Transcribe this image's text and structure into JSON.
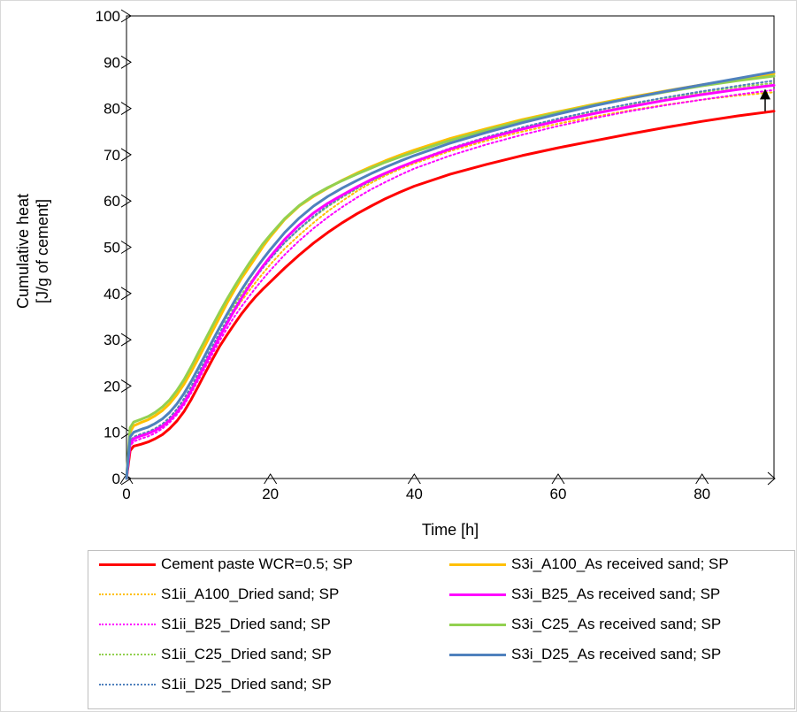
{
  "chart_data": {
    "type": "line",
    "title": "",
    "xlabel": "Time [h]",
    "ylabel": [
      "Cumulative heat",
      "[J/g of cement]"
    ],
    "xlim": [
      0,
      90
    ],
    "ylim": [
      0,
      100
    ],
    "xticks": [
      0,
      20,
      40,
      60,
      80
    ],
    "yticks": [
      0,
      10,
      20,
      30,
      40,
      50,
      60,
      70,
      80,
      90,
      100
    ],
    "grid": false,
    "legend_position": "bottom",
    "x": [
      0,
      0.5,
      1,
      2,
      3,
      4,
      5,
      6,
      7,
      8,
      9,
      10,
      11,
      12,
      13,
      14,
      15,
      16,
      17,
      18,
      19,
      20,
      22,
      24,
      26,
      28,
      30,
      32,
      34,
      36,
      38,
      40,
      45,
      50,
      55,
      60,
      65,
      70,
      75,
      80,
      85,
      90
    ],
    "series": [
      {
        "name": "Cement paste WCR=0.5; SP",
        "color": "#ff0000",
        "style": "solid",
        "values": [
          0,
          6,
          7,
          7.4,
          7.9,
          8.6,
          9.5,
          10.8,
          12.4,
          14.5,
          17.1,
          20.0,
          23.0,
          25.9,
          28.7,
          31.1,
          33.4,
          35.6,
          37.6,
          39.4,
          41.0,
          42.5,
          45.5,
          48.3,
          50.9,
          53.2,
          55.3,
          57.2,
          58.9,
          60.5,
          61.9,
          63.2,
          65.8,
          67.9,
          69.8,
          71.5,
          73.0,
          74.5,
          75.9,
          77.2,
          78.4,
          79.4
        ]
      },
      {
        "name": "S3i_A100_As received sand; SP",
        "color": "#ffc000",
        "style": "solid",
        "values": [
          0,
          10,
          11.4,
          12.1,
          12.7,
          13.6,
          14.7,
          16.2,
          18.1,
          20.4,
          23.1,
          26.0,
          29.0,
          32.0,
          35.0,
          38.0,
          40.7,
          43.3,
          45.6,
          47.9,
          50.2,
          52.3,
          56.0,
          58.9,
          61.0,
          62.8,
          64.5,
          66.0,
          67.4,
          68.7,
          69.9,
          71.0,
          73.5,
          75.6,
          77.6,
          79.3,
          80.9,
          82.4,
          83.8,
          85.1,
          86.2,
          87.5
        ]
      },
      {
        "name": "S1ii_A100_Dried sand; SP",
        "color": "#ffc000",
        "style": "dotted",
        "values": [
          0,
          8,
          9.0,
          9.6,
          10.1,
          10.8,
          11.8,
          13.2,
          15.0,
          17.2,
          19.8,
          22.6,
          25.5,
          28.4,
          31.1,
          33.7,
          36.1,
          38.4,
          40.5,
          42.5,
          44.4,
          46.3,
          49.7,
          52.6,
          55.3,
          57.8,
          60.0,
          62.1,
          63.9,
          65.5,
          66.9,
          68.1,
          70.8,
          73.0,
          75.0,
          76.7,
          78.2,
          79.6,
          80.8,
          81.9,
          82.8,
          83.5
        ]
      },
      {
        "name": "S3i_B25_As received sand; SP",
        "color": "#ff00ff",
        "style": "solid",
        "values": [
          0,
          7.5,
          8.6,
          9.2,
          9.7,
          10.4,
          11.3,
          12.6,
          14.3,
          16.4,
          19.0,
          21.9,
          24.9,
          27.9,
          30.8,
          33.6,
          36.4,
          39.0,
          41.5,
          43.8,
          46.0,
          48.0,
          51.7,
          54.8,
          57.4,
          59.5,
          61.3,
          63.0,
          64.6,
          66.0,
          67.3,
          68.5,
          71.2,
          73.5,
          75.5,
          77.3,
          78.9,
          80.4,
          81.8,
          83.0,
          84.1,
          85.0
        ]
      },
      {
        "name": "S1ii_B25_Dried sand; SP",
        "color": "#ff00ff",
        "style": "dotted",
        "values": [
          0,
          7,
          8.0,
          8.6,
          9.1,
          9.8,
          10.8,
          12.1,
          13.8,
          15.9,
          18.5,
          21.3,
          24.2,
          27.1,
          29.9,
          32.5,
          35.0,
          37.2,
          39.3,
          41.3,
          43.2,
          45.0,
          48.4,
          51.4,
          54.1,
          56.5,
          58.7,
          60.7,
          62.5,
          64.1,
          65.6,
          67.0,
          69.8,
          72.2,
          74.3,
          76.2,
          77.9,
          79.4,
          80.7,
          81.9,
          83.0,
          84.0
        ]
      },
      {
        "name": "S3i_C25_As received sand; SP",
        "color": "#92d050",
        "style": "solid",
        "values": [
          0,
          11,
          12.2,
          12.8,
          13.4,
          14.3,
          15.5,
          17.0,
          19.0,
          21.4,
          24.2,
          27.2,
          30.2,
          33.2,
          36.1,
          38.9,
          41.5,
          44.0,
          46.4,
          48.6,
          50.8,
          52.7,
          56.2,
          59.0,
          61.2,
          62.9,
          64.4,
          65.8,
          67.1,
          68.4,
          69.5,
          70.6,
          73.1,
          75.3,
          77.3,
          79.1,
          80.7,
          82.2,
          83.6,
          84.9,
          86.0,
          87.0
        ]
      },
      {
        "name": "S1ii_C25_Dried sand; SP",
        "color": "#92d050",
        "style": "dotted",
        "values": [
          0,
          9,
          10.1,
          10.7,
          11.2,
          12.0,
          13.0,
          14.4,
          16.2,
          18.5,
          21.1,
          23.9,
          26.8,
          29.7,
          32.5,
          35.1,
          37.5,
          39.8,
          42.0,
          44.0,
          45.9,
          47.7,
          51.0,
          53.9,
          56.5,
          58.8,
          60.8,
          62.6,
          64.3,
          65.8,
          67.2,
          68.5,
          71.3,
          73.7,
          75.8,
          77.7,
          79.4,
          80.9,
          82.3,
          83.5,
          84.6,
          85.5
        ]
      },
      {
        "name": "S3i_D25_As received sand; SP",
        "color": "#4f81bd",
        "style": "solid",
        "values": [
          0,
          9,
          10.0,
          10.6,
          11.1,
          11.9,
          12.9,
          14.3,
          16.1,
          18.4,
          21.0,
          23.9,
          26.9,
          29.9,
          32.8,
          35.6,
          38.3,
          40.8,
          43.2,
          45.4,
          47.5,
          49.5,
          53.2,
          56.3,
          58.9,
          61.0,
          62.8,
          64.4,
          65.9,
          67.3,
          68.6,
          69.8,
          72.5,
          74.8,
          76.9,
          78.8,
          80.6,
          82.2,
          83.7,
          85.1,
          86.5,
          87.9
        ]
      },
      {
        "name": "S1ii_D25_Dried sand; SP",
        "color": "#4f81bd",
        "style": "dotted",
        "values": [
          0,
          8,
          9.0,
          9.6,
          10.1,
          10.8,
          11.8,
          13.2,
          15.0,
          17.3,
          19.9,
          22.8,
          25.8,
          28.8,
          31.6,
          34.3,
          36.8,
          39.2,
          41.5,
          43.6,
          45.6,
          47.5,
          51.0,
          54.0,
          56.7,
          59.0,
          61.0,
          62.8,
          64.4,
          65.9,
          67.3,
          68.6,
          71.4,
          73.8,
          75.9,
          77.8,
          79.5,
          81.0,
          82.4,
          83.7,
          84.9,
          86.0
        ]
      }
    ],
    "annotations": [
      "upward arrow at t≈90 h between 79 and 83 J/g"
    ]
  },
  "legend": {
    "items": [
      {
        "label": "Cement paste WCR=0.5; SP",
        "color": "#ff0000",
        "style": "solid"
      },
      {
        "label": "S3i_A100_As received sand; SP",
        "color": "#ffc000",
        "style": "solid"
      },
      {
        "label": "S1ii_A100_Dried sand; SP",
        "color": "#ffc000",
        "style": "dotted"
      },
      {
        "label": "S3i_B25_As received sand; SP",
        "color": "#ff00ff",
        "style": "solid"
      },
      {
        "label": "S1ii_B25_Dried sand; SP",
        "color": "#ff00ff",
        "style": "dotted"
      },
      {
        "label": "S3i_C25_As received sand; SP",
        "color": "#92d050",
        "style": "solid"
      },
      {
        "label": "S1ii_C25_Dried sand; SP",
        "color": "#92d050",
        "style": "dotted"
      },
      {
        "label": "S3i_D25_As received sand; SP",
        "color": "#4f81bd",
        "style": "solid"
      },
      {
        "label": "S1ii_D25_Dried sand; SP",
        "color": "#4f81bd",
        "style": "dotted"
      }
    ]
  }
}
